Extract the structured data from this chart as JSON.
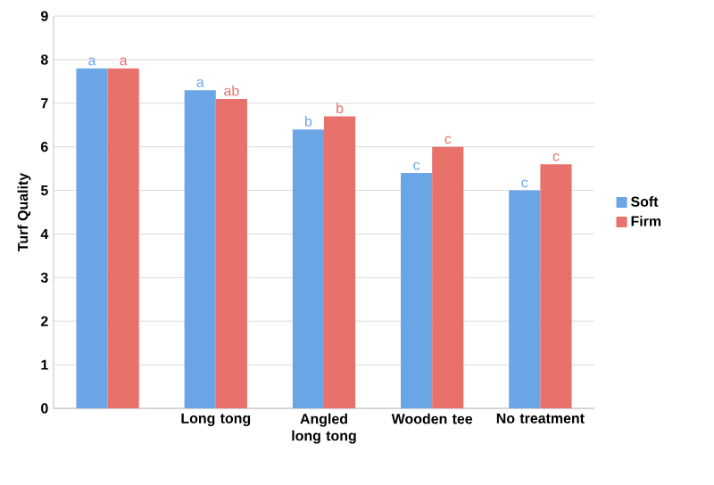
{
  "chart_data": {
    "type": "bar",
    "ylabel": "Turf Quality",
    "categories": [
      null,
      "Long tong",
      "Angled long tong",
      "Wooden tee",
      "No treatment"
    ],
    "series": [
      {
        "name": "Soft",
        "color": "#6aa6e6",
        "values": [
          7.8,
          7.3,
          6.4,
          5.4,
          5.0
        ],
        "value_labels": [
          "a",
          "a",
          "b",
          "c",
          "c"
        ]
      },
      {
        "name": "Firm",
        "color": "#e8716b",
        "values": [
          7.8,
          7.1,
          6.7,
          6.0,
          5.6
        ],
        "value_labels": [
          "a",
          "ab",
          "b",
          "c",
          "c"
        ]
      }
    ],
    "ylim": [
      0,
      9
    ],
    "yticks": [
      0,
      1,
      2,
      3,
      4,
      5,
      6,
      7,
      8,
      9
    ],
    "grid": "y",
    "legend": "right"
  }
}
